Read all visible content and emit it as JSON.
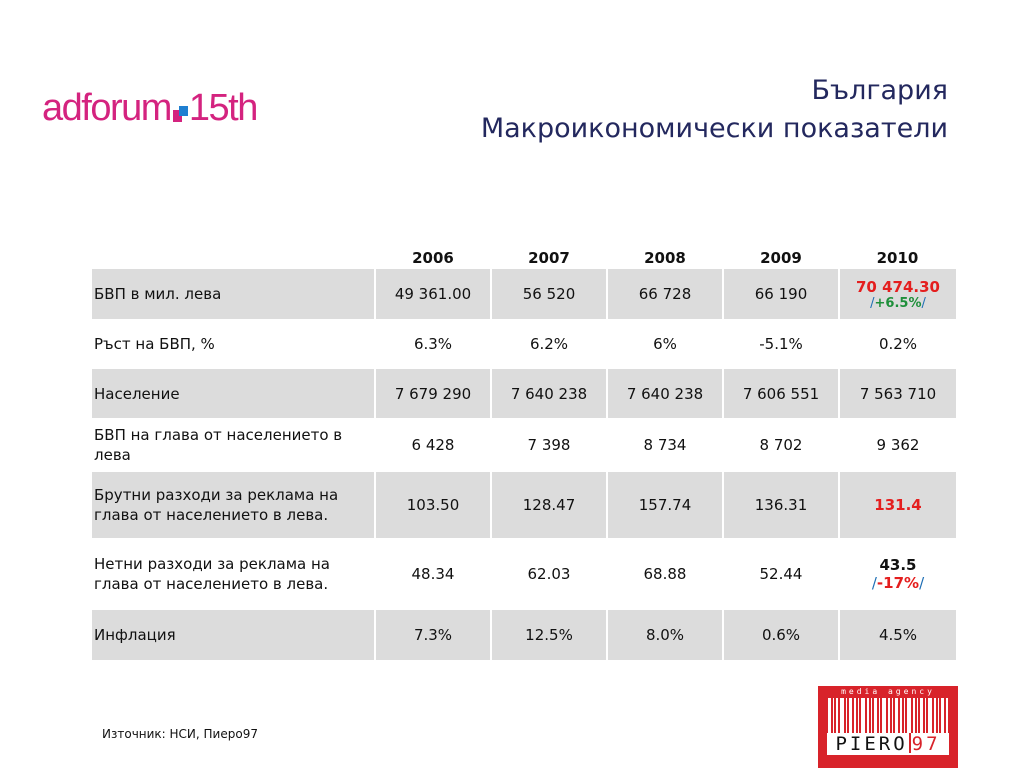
{
  "logo": {
    "left_text": "adforum",
    "right_text": "15th",
    "colors": {
      "text": "#d4237f",
      "square_pink": "#d4237f",
      "square_blue": "#1f7fd1"
    }
  },
  "header": {
    "line1": "България",
    "line2": "Макроикономически показатели",
    "color": "#23285e"
  },
  "table": {
    "years": [
      "2006",
      "2007",
      "2008",
      "2009",
      "2010"
    ],
    "rows": [
      {
        "label": "БВП в мил. лева",
        "values": [
          "49 361.00",
          "56 520",
          "66 728",
          "66 190"
        ],
        "last_main": "70 474.30",
        "last_sub": "+6.5%"
      },
      {
        "label": "Ръст на БВП, %",
        "values": [
          "6.3%",
          "6.2%",
          "6%",
          "-5.1%",
          "0.2%"
        ]
      },
      {
        "label": "Население",
        "values": [
          "7 679 290",
          "7 640 238",
          "7 640 238",
          "7 606 551",
          "7 563 710"
        ]
      },
      {
        "label": "БВП на глава от населението в лева",
        "values": [
          "6 428",
          "7 398",
          "8 734",
          "8 702",
          "9 362"
        ]
      },
      {
        "label": "Брутни разходи за реклама на глава от населението в лева.",
        "values": [
          "103.50",
          "128.47",
          "157.74",
          "136.31",
          "131.4"
        ]
      },
      {
        "label": "Нетни разходи за реклама на глава от населението в лева.",
        "values": [
          "48.34",
          "62.03",
          "68.88",
          "52.44"
        ],
        "last_main": "43.5",
        "last_sub": "-17%"
      },
      {
        "label": "Инфлация",
        "values": [
          "7.3%",
          "12.5%",
          "8.0%",
          "0.6%",
          "4.5%"
        ]
      }
    ],
    "colors": {
      "shade": "#dcdcdc",
      "highlight_red": "#e41e1e",
      "highlight_green": "#1e8f3a",
      "slash_blue": "#1f6fb5"
    }
  },
  "footer": {
    "source": "Източник: НСИ, Пиеро97"
  },
  "brand": {
    "tagline": "media agency",
    "name": "PIERO",
    "number": "97",
    "color": "#d8232a"
  }
}
